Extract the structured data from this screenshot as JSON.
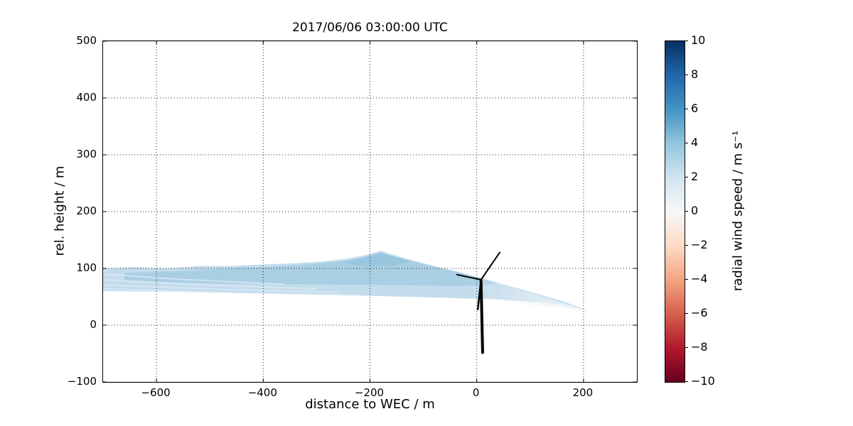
{
  "chart_data": {
    "type": "heatmap",
    "title": "2017/06/06 03:00:00 UTC",
    "xlabel": "distance to WEC / m",
    "ylabel": "rel. height / m",
    "xlim": [
      -700,
      300
    ],
    "ylim": [
      -100,
      500
    ],
    "xticks": [
      -600,
      -400,
      -200,
      0,
      200
    ],
    "yticks": [
      -100,
      0,
      100,
      200,
      300,
      400,
      500
    ],
    "grid": {
      "style": "dotted",
      "color": "#000000"
    },
    "colorbar": {
      "label": "radial wind speed / m s⁻¹",
      "min": -10,
      "max": 10,
      "ticks": [
        10,
        8,
        6,
        4,
        2,
        0,
        -2,
        -4,
        -6,
        -8,
        -10
      ],
      "colormap": "RdBu",
      "stops": [
        {
          "value": 10,
          "color": "#053061"
        },
        {
          "value": 8,
          "color": "#2166ac"
        },
        {
          "value": 6,
          "color": "#4393c3"
        },
        {
          "value": 4,
          "color": "#92c5de"
        },
        {
          "value": 2,
          "color": "#d1e5f0"
        },
        {
          "value": 0,
          "color": "#f7f7f7"
        },
        {
          "value": -2,
          "color": "#fddbc7"
        },
        {
          "value": -4,
          "color": "#f4a582"
        },
        {
          "value": -6,
          "color": "#d6604d"
        },
        {
          "value": -8,
          "color": "#b2182b"
        },
        {
          "value": -10,
          "color": "#67001f"
        }
      ]
    },
    "scan": {
      "description": "lidar scan fan of radial wind speed around wind turbine (WEC); fan apex near x=210 m, z=25 m; fan spans heights 60-100 m at x=-700 m with peak height ~131 m near x=-180 m",
      "value_range_ms": [
        0.5,
        5
      ],
      "apex": [
        210,
        25
      ],
      "base_value_ms": 3,
      "base_color": "#c3dcec",
      "core_value_ms": 4,
      "core_color": "#a6cde2",
      "peak_value_ms": 4.5,
      "peak_color": "#93c3dd",
      "streak_value_ms": 2,
      "streak_color": "#ddebf4",
      "fade_value_ms": 0.5,
      "fade_color": "#eef4f9",
      "fan_polygon": [
        [
          -700,
          60
        ],
        [
          -700,
          100
        ],
        [
          -640,
          102
        ],
        [
          -580,
          100
        ],
        [
          -520,
          104
        ],
        [
          -460,
          104
        ],
        [
          -400,
          107
        ],
        [
          -340,
          109
        ],
        [
          -290,
          112
        ],
        [
          -245,
          117
        ],
        [
          -210,
          123
        ],
        [
          -180,
          131
        ],
        [
          -150,
          122
        ],
        [
          -115,
          113
        ],
        [
          -75,
          103
        ],
        [
          -35,
          94
        ],
        [
          5,
          84
        ],
        [
          45,
          73
        ],
        [
          85,
          63
        ],
        [
          125,
          52
        ],
        [
          165,
          41
        ],
        [
          210,
          25
        ],
        [
          160,
          36
        ],
        [
          120,
          40
        ],
        [
          75,
          43
        ],
        [
          30,
          46
        ],
        [
          -20,
          47
        ],
        [
          -90,
          49
        ],
        [
          -170,
          51
        ],
        [
          -260,
          53
        ],
        [
          -360,
          55
        ],
        [
          -470,
          57
        ],
        [
          -580,
          59
        ],
        [
          -700,
          60
        ]
      ],
      "core_polygon": [
        [
          -660,
          92
        ],
        [
          -560,
          95
        ],
        [
          -460,
          100
        ],
        [
          -360,
          104
        ],
        [
          -280,
          110
        ],
        [
          -220,
          116
        ],
        [
          -180,
          127
        ],
        [
          -150,
          119
        ],
        [
          -110,
          110
        ],
        [
          -70,
          101
        ],
        [
          -30,
          92
        ],
        [
          10,
          82
        ],
        [
          40,
          74
        ],
        [
          10,
          70
        ],
        [
          -40,
          69
        ],
        [
          -120,
          70
        ],
        [
          -220,
          71
        ],
        [
          -330,
          72
        ],
        [
          -450,
          73
        ],
        [
          -560,
          75
        ],
        [
          -660,
          79
        ]
      ],
      "peak_polygon": [
        [
          -255,
          111
        ],
        [
          -215,
          119
        ],
        [
          -180,
          128
        ],
        [
          -152,
          120
        ],
        [
          -122,
          112
        ],
        [
          -160,
          104
        ],
        [
          -215,
          104
        ]
      ],
      "streaks": [
        [
          [
            -700,
            64
          ],
          [
            -450,
            57
          ],
          [
            -220,
            53
          ]
        ],
        [
          [
            -700,
            71
          ],
          [
            -480,
            63
          ],
          [
            -260,
            58
          ]
        ],
        [
          [
            -700,
            80
          ],
          [
            -520,
            71
          ],
          [
            -300,
            64
          ]
        ],
        [
          [
            -700,
            90
          ],
          [
            -560,
            81
          ],
          [
            -360,
            72
          ]
        ]
      ],
      "fade_polygon": [
        [
          -10,
          89
        ],
        [
          210,
          25
        ],
        [
          -10,
          47
        ]
      ]
    },
    "turbine": {
      "description": "wind turbine (WEC) silhouette at x=0, hub height ~80 m, tower base ~-50 m",
      "hub": [
        8,
        80
      ],
      "segments": [
        {
          "name": "tower",
          "from": [
            8,
            78
          ],
          "to": [
            11,
            -48
          ],
          "width": 4
        },
        {
          "name": "blade-up",
          "from": [
            8,
            80
          ],
          "to": [
            43,
            128
          ],
          "width": 2
        },
        {
          "name": "blade-left",
          "from": [
            8,
            80
          ],
          "to": [
            -37,
            89
          ],
          "width": 2
        },
        {
          "name": "blade-down",
          "from": [
            8,
            80
          ],
          "to": [
            2,
            28
          ],
          "width": 2.5
        }
      ]
    }
  }
}
